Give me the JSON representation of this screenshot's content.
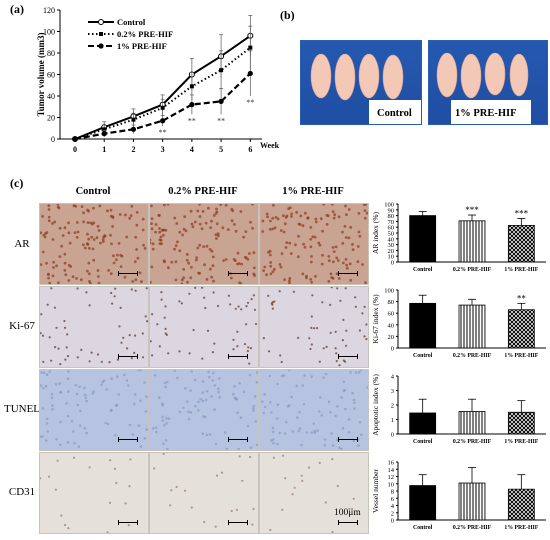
{
  "panel_a": {
    "label": "(a)",
    "legend": [
      "Control",
      "0.2% PRE-HIF",
      "1% PRE-HIF"
    ],
    "chart_data": {
      "type": "line",
      "x": [
        0,
        1,
        2,
        3,
        4,
        5,
        6
      ],
      "xlabel": "Week",
      "ylabel": "Tumor volume (mm3)",
      "ylim": [
        0,
        120
      ],
      "yticks": [
        0,
        20,
        40,
        60,
        80,
        100,
        120
      ],
      "series": [
        {
          "name": "Control",
          "values": [
            0,
            11,
            21,
            32,
            60,
            77,
            96
          ],
          "errors": [
            2,
            5,
            7,
            9,
            15,
            20,
            19
          ],
          "style": "solid",
          "marker": "open-circle"
        },
        {
          "name": "0.2% PRE-HIF",
          "values": [
            0,
            9,
            18,
            29,
            49,
            64,
            85
          ],
          "errors": [
            2,
            4,
            6,
            8,
            13,
            18,
            20
          ],
          "style": "dotted",
          "marker": "filled-square"
        },
        {
          "name": "1% PRE-HIF",
          "values": [
            0,
            5,
            9,
            17,
            32,
            35,
            61
          ],
          "errors": [
            1,
            3,
            4,
            5,
            9,
            12,
            21
          ],
          "style": "dashed",
          "marker": "filled-circle"
        }
      ],
      "annotations": [
        {
          "x": 3,
          "text": "**"
        },
        {
          "x": 4,
          "text": "**"
        },
        {
          "x": 5,
          "text": "**"
        },
        {
          "x": 6,
          "text": "**"
        }
      ]
    }
  },
  "panel_b": {
    "label": "(b)",
    "photo_labels": [
      "Control",
      "1% PRE-HIF"
    ]
  },
  "panel_c": {
    "label": "(c)",
    "column_headers": [
      "Control",
      "0.2% PRE-HIF",
      "1% PRE-HIF"
    ],
    "row_labels": [
      "AR",
      "Ki-67",
      "TUNEL",
      "CD31"
    ],
    "scale_label": "100μm",
    "stain_colors": {
      "AR": "#c9a493",
      "Ki-67": "#dcd6e0",
      "TUNEL": "#b6c4e2",
      "CD31": "#e6e0da"
    },
    "chart_data": [
      {
        "type": "bar",
        "categories": [
          "Control",
          "0.2% PRE-HIF",
          "1% PRE-HIF"
        ],
        "values": [
          80,
          71,
          63
        ],
        "errors": [
          7,
          10,
          12
        ],
        "ylabel": "AR index (%)",
        "ylim": [
          0,
          100
        ],
        "yticks": [
          0,
          10,
          20,
          30,
          40,
          50,
          60,
          70,
          80,
          90,
          100
        ],
        "annotations": [
          "",
          "***",
          "***"
        ]
      },
      {
        "type": "bar",
        "categories": [
          "Control",
          "0.2% PRE-HIF",
          "1% PRE-HIF"
        ],
        "values": [
          77,
          74,
          66
        ],
        "errors": [
          14,
          10,
          11
        ],
        "ylabel": "Ki-67 index (%)",
        "ylim": [
          0,
          100
        ],
        "yticks": [
          0,
          20,
          40,
          60,
          80,
          100
        ],
        "annotations": [
          "",
          "",
          "**"
        ]
      },
      {
        "type": "bar",
        "categories": [
          "Control",
          "0.2% PRE-HIF",
          "1% PRE-HIF"
        ],
        "values": [
          1.45,
          1.55,
          1.5
        ],
        "errors": [
          0.95,
          0.85,
          0.8
        ],
        "ylabel": "Apoptotic index (%)",
        "ylim": [
          0,
          4
        ],
        "yticks": [
          0,
          1,
          2,
          3,
          4
        ],
        "annotations": [
          "",
          "",
          ""
        ]
      },
      {
        "type": "bar",
        "categories": [
          "Control",
          "0.2% PRE-HIF",
          "1% PRE-HIF"
        ],
        "values": [
          9.5,
          10.2,
          8.5
        ],
        "errors": [
          3,
          4.3,
          4
        ],
        "ylabel": "Vessel number",
        "ylim": [
          0,
          16
        ],
        "yticks": [
          0,
          2,
          4,
          6,
          8,
          10,
          12,
          14,
          16
        ],
        "annotations": [
          "",
          "",
          ""
        ]
      }
    ]
  }
}
